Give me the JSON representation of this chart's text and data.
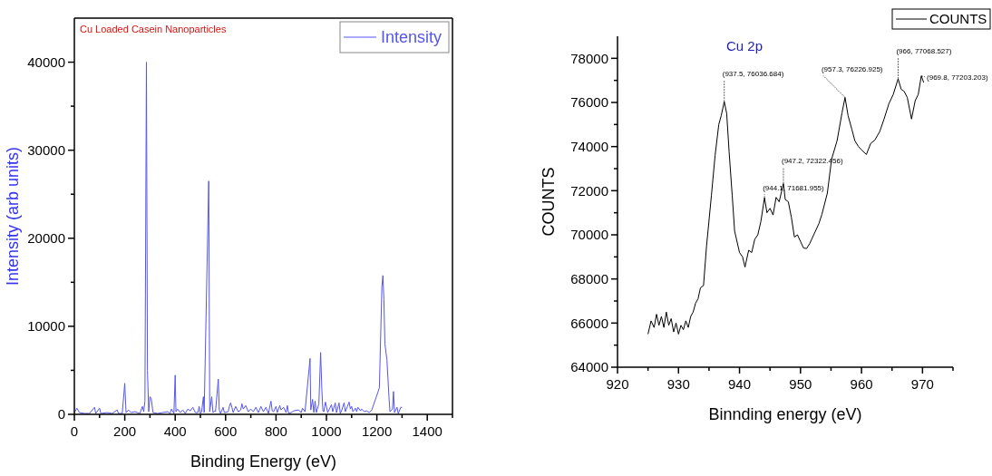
{
  "chart_data": [
    {
      "type": "line",
      "title": "Cu Loaded Casein Nanoparticles",
      "xlabel": "Binding Energy (eV)",
      "ylabel": "Intensity (arb units)",
      "xlim": [
        0,
        1500
      ],
      "ylim": [
        0,
        45000
      ],
      "xticks": [
        0,
        {
          "value": 100,
          "label": null
        },
        200,
        {
          "value": 300,
          "label": null
        },
        400,
        {
          "value": 500,
          "label": null
        },
        600,
        {
          "value": 700,
          "label": null
        },
        800,
        {
          "value": 900,
          "label": null
        },
        1000,
        {
          "value": 1100,
          "label": null
        },
        1200,
        {
          "value": 1300,
          "label": null
        },
        1400,
        {
          "value": 1500,
          "label": null
        }
      ],
      "yticks": [
        0,
        {
          "value": 5000,
          "label": null
        },
        10000,
        {
          "value": 15000,
          "label": null
        },
        20000,
        {
          "value": 25000,
          "label": null
        },
        30000,
        {
          "value": 35000,
          "label": null
        },
        40000
      ],
      "grid": false,
      "legend": "top right",
      "series": [
        {
          "name": "Intensity",
          "color": "#5555f0",
          "x": [
            0,
            10,
            20,
            40,
            60,
            80,
            85,
            100,
            105,
            130,
            150,
            170,
            175,
            190,
            200,
            205,
            215,
            225,
            240,
            260,
            270,
            275,
            280,
            286,
            290,
            295,
            300,
            305,
            312,
            330,
            350,
            370,
            380,
            385,
            395,
            400,
            403,
            410,
            420,
            430,
            440,
            450,
            460,
            470,
            480,
            490,
            495,
            500,
            505,
            512,
            515,
            533,
            537,
            545,
            550,
            557,
            560,
            571,
            575,
            580,
            590,
            595,
            610,
            615,
            620,
            625,
            630,
            640,
            650,
            660,
            665,
            670,
            680,
            690,
            700,
            710,
            720,
            730,
            740,
            750,
            760,
            770,
            780,
            785,
            790,
            800,
            805,
            815,
            820,
            830,
            840,
            845,
            850,
            860,
            870,
            890,
            900,
            905,
            915,
            935,
            938,
            945,
            950,
            955,
            960,
            970,
            977,
            982,
            986,
            990,
            996,
            1000,
            1005,
            1020,
            1025,
            1035,
            1040,
            1050,
            1055,
            1060,
            1070,
            1075,
            1090,
            1095,
            1100,
            1105,
            1115,
            1120,
            1125,
            1135,
            1140,
            1150,
            1160,
            1170,
            1180,
            1210,
            1220,
            1224,
            1228,
            1232,
            1236,
            1240,
            1248,
            1252,
            1262,
            1266,
            1270,
            1280,
            1285,
            1295,
            1300
          ],
          "values": [
            200,
            700,
            200,
            100,
            100,
            800,
            100,
            700,
            100,
            200,
            100,
            500,
            100,
            100,
            3530,
            200,
            500,
            200,
            300,
            100,
            900,
            300,
            1500,
            40000,
            5000,
            300,
            2000,
            1800,
            200,
            100,
            200,
            300,
            100,
            600,
            100,
            4450,
            300,
            600,
            200,
            500,
            100,
            600,
            400,
            800,
            200,
            200,
            900,
            100,
            300,
            2000,
            200,
            26500,
            300,
            2000,
            200,
            400,
            300,
            4000,
            500,
            100,
            800,
            200,
            300,
            900,
            1300,
            800,
            200,
            900,
            300,
            500,
            1200,
            600,
            1000,
            300,
            600,
            300,
            800,
            200,
            900,
            300,
            800,
            100,
            1500,
            400,
            300,
            900,
            200,
            1000,
            500,
            800,
            200,
            1000,
            100,
            200,
            400,
            500,
            200,
            700,
            300,
            6340,
            500,
            1700,
            200,
            1500,
            200,
            1200,
            7030,
            2700,
            400,
            300,
            1400,
            900,
            200,
            1100,
            300,
            1300,
            200,
            1300,
            100,
            400,
            1300,
            300,
            1400,
            600,
            900,
            300,
            700,
            300,
            800,
            400,
            600,
            300,
            400,
            200,
            500,
            3000,
            14500,
            15770,
            13000,
            8000,
            7100,
            6200,
            2000,
            300,
            600,
            2600,
            200,
            800,
            100,
            800,
            800
          ]
        }
      ]
    },
    {
      "type": "line",
      "title": "Cu 2p",
      "xlabel": "Binnding energy (eV)",
      "ylabel": "COUNTS",
      "xlim": [
        920,
        975
      ],
      "ylim": [
        64000,
        79000
      ],
      "xticks": [
        920,
        {
          "value": 925,
          "label": null
        },
        930,
        {
          "value": 935,
          "label": null
        },
        940,
        {
          "value": 945,
          "label": null
        },
        950,
        {
          "value": 955,
          "label": null
        },
        960,
        {
          "value": 965,
          "label": null
        },
        970,
        {
          "value": 975,
          "label": null
        }
      ],
      "yticks": [
        64000,
        {
          "value": 65000,
          "label": null
        },
        66000,
        {
          "value": 67000,
          "label": null
        },
        68000,
        {
          "value": 69000,
          "label": null
        },
        70000,
        {
          "value": 71000,
          "label": null
        },
        72000,
        {
          "value": 73000,
          "label": null
        },
        74000,
        {
          "value": 75000,
          "label": null
        },
        76000,
        {
          "value": 77000,
          "label": null
        },
        78000
      ],
      "grid": false,
      "legend": "top right",
      "annotations": [
        {
          "text": "(937.5, 76036.684)",
          "x": 937.5,
          "y": 76036.684
        },
        {
          "text": "(944.1, 71681.955)",
          "x": 944.1,
          "y": 71681.955
        },
        {
          "text": "(947.2, 72322.456)",
          "x": 947.2,
          "y": 72322.456
        },
        {
          "text": "(957.3, 76226.925)",
          "x": 957.3,
          "y": 76226.925
        },
        {
          "text": "(966, 77068.527)",
          "x": 966,
          "y": 77068.527
        },
        {
          "text": "(969.8, 77203.203)",
          "x": 969.8,
          "y": 77203.203
        }
      ],
      "series": [
        {
          "name": "COUNTS",
          "color": "#000000",
          "x": [
            925,
            925.5,
            926,
            926.4,
            926.8,
            927.2,
            927.6,
            928,
            928.4,
            928.8,
            929.2,
            929.6,
            930,
            930.4,
            930.8,
            931.2,
            931.6,
            932,
            932.4,
            932.8,
            933.2,
            933.6,
            934.1,
            934.6,
            935.4,
            936,
            936.6,
            937,
            937.5,
            937.9,
            938.3,
            938.8,
            939.2,
            940,
            940.5,
            940.9,
            941.5,
            942,
            942.5,
            943,
            943.5,
            944.1,
            944.5,
            945,
            945.5,
            946,
            946.5,
            947.2,
            947.5,
            948,
            948.5,
            949,
            949.5,
            950,
            950.5,
            951,
            951.5,
            952.3,
            953,
            953.5,
            954.4,
            955.1,
            956,
            956.8,
            957.3,
            957.8,
            958.4,
            958.9,
            959.5,
            960,
            960.8,
            961.5,
            962.2,
            963,
            963.7,
            964.5,
            965.2,
            966,
            966.5,
            967,
            967.5,
            968.2,
            968.8,
            969.3,
            969.8,
            970.2
          ],
          "values": [
            65500,
            66100,
            65800,
            66400,
            65900,
            66300,
            65800,
            66500,
            65900,
            66200,
            65600,
            66000,
            65500,
            65900,
            65700,
            66100,
            65800,
            66300,
            66500,
            66900,
            67100,
            67600,
            67700,
            69500,
            71800,
            73600,
            75000,
            75400,
            76036.684,
            75500,
            73750,
            71800,
            70170,
            69200,
            69000,
            68540,
            69300,
            69200,
            69800,
            70000,
            70600,
            71681.955,
            71000,
            71200,
            70900,
            71700,
            71500,
            72322.456,
            71600,
            71500,
            70800,
            69900,
            70000,
            69700,
            69400,
            69380,
            69600,
            70080,
            70500,
            70920,
            71890,
            73430,
            74270,
            75525,
            76226.925,
            75400,
            74800,
            74270,
            74000,
            73850,
            73640,
            74140,
            74300,
            74690,
            75250,
            75950,
            76360,
            77068.527,
            76600,
            76500,
            76230,
            75250,
            76080,
            76360,
            77203.203,
            76900
          ]
        }
      ]
    }
  ]
}
